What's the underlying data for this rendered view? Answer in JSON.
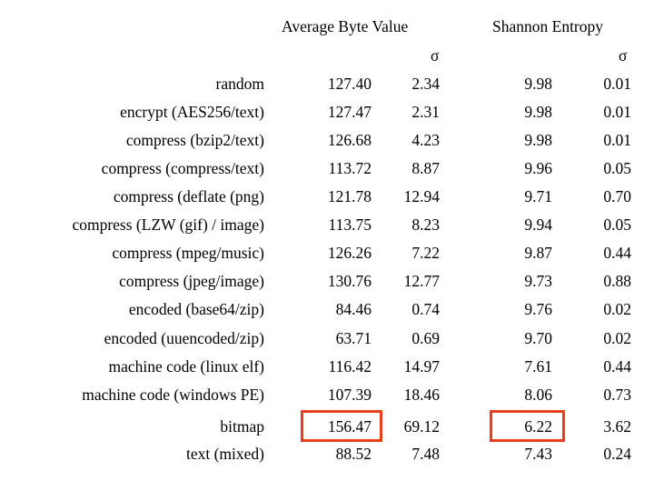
{
  "headers": {
    "avg": "Average Byte Value",
    "entropy": "Shannon Entropy",
    "sigma": "σ"
  },
  "highlight_color": "#e8401c",
  "rows": [
    {
      "label": "random",
      "avg": "127.40",
      "avg_sd": "2.34",
      "ent": "9.98",
      "ent_sd": "0.01"
    },
    {
      "label": "encrypt (AES256/text)",
      "avg": "127.47",
      "avg_sd": "2.31",
      "ent": "9.98",
      "ent_sd": "0.01"
    },
    {
      "label": "compress (bzip2/text)",
      "avg": "126.68",
      "avg_sd": "4.23",
      "ent": "9.98",
      "ent_sd": "0.01"
    },
    {
      "label": "compress (compress/text)",
      "avg": "113.72",
      "avg_sd": "8.87",
      "ent": "9.96",
      "ent_sd": "0.05"
    },
    {
      "label": "compress (deflate (png)",
      "avg": "121.78",
      "avg_sd": "12.94",
      "ent": "9.71",
      "ent_sd": "0.70"
    },
    {
      "label": "compress (LZW (gif) / image)",
      "avg": "113.75",
      "avg_sd": "8.23",
      "ent": "9.94",
      "ent_sd": "0.05"
    },
    {
      "label": "compress (mpeg/music)",
      "avg": "126.26",
      "avg_sd": "7.22",
      "ent": "9.87",
      "ent_sd": "0.44"
    },
    {
      "label": "compress (jpeg/image)",
      "avg": "130.76",
      "avg_sd": "12.77",
      "ent": "9.73",
      "ent_sd": "0.88"
    },
    {
      "label": "encoded (base64/zip)",
      "avg": "84.46",
      "avg_sd": "0.74",
      "ent": "9.76",
      "ent_sd": "0.02"
    },
    {
      "label": "encoded (uuencoded/zip)",
      "avg": "63.71",
      "avg_sd": "0.69",
      "ent": "9.70",
      "ent_sd": "0.02"
    },
    {
      "label": "machine code (linux elf)",
      "avg": "116.42",
      "avg_sd": "14.97",
      "ent": "7.61",
      "ent_sd": "0.44"
    },
    {
      "label": "machine code (windows PE)",
      "avg": "107.39",
      "avg_sd": "18.46",
      "ent": "8.06",
      "ent_sd": "0.73"
    },
    {
      "label": "bitmap",
      "avg": "156.47",
      "avg_sd": "69.12",
      "ent": "6.22",
      "ent_sd": "3.62"
    },
    {
      "label": "text (mixed)",
      "avg": "88.52",
      "avg_sd": "7.48",
      "ent": "7.43",
      "ent_sd": "0.24"
    }
  ]
}
